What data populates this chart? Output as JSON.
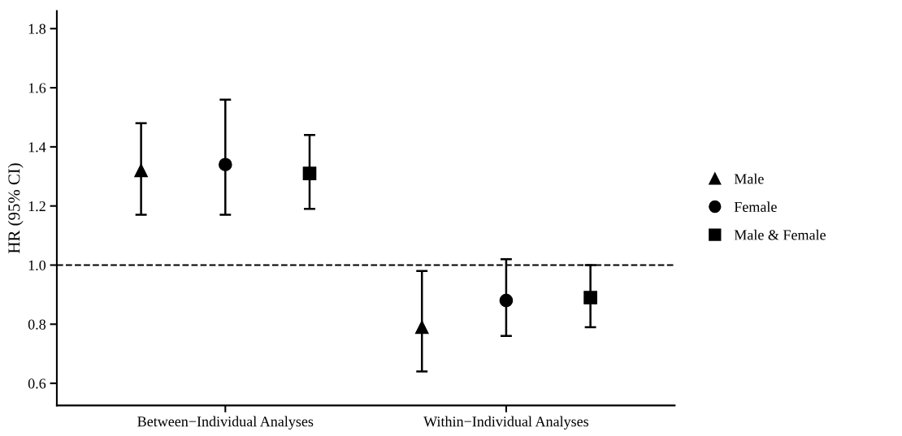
{
  "chart_data": {
    "type": "scatter",
    "ylabel": "HR (95% CI)",
    "categories": [
      "Between−Individual Analyses",
      "Within−Individual Analyses"
    ],
    "series": [
      {
        "name": "Male",
        "color": "#000000",
        "marker": "triangle",
        "values": [
          1.32,
          0.79
        ],
        "errors": [
          [
            1.17,
            1.48
          ],
          [
            0.64,
            0.98
          ]
        ]
      },
      {
        "name": "Female",
        "color": "#000000",
        "marker": "circle",
        "values": [
          1.34,
          0.88
        ],
        "errors": [
          [
            1.17,
            1.56
          ],
          [
            0.76,
            1.02
          ]
        ]
      },
      {
        "name": "Male & Female",
        "color": "#000000",
        "marker": "square",
        "values": [
          1.31,
          0.89
        ],
        "errors": [
          [
            1.19,
            1.44
          ],
          [
            0.79,
            1.0
          ]
        ]
      }
    ],
    "ylim": [
      0.525,
      1.86
    ],
    "yticks": [
      0.6,
      0.8,
      {
        "value": 1,
        "label": "1.0"
      },
      1.2,
      1.4,
      1.6,
      1.8
    ],
    "ref_lines": [
      {
        "axis": "y",
        "value": 1.0,
        "line_style": "dashed",
        "color": "#000000"
      }
    ],
    "grid": false,
    "legend": "right"
  }
}
